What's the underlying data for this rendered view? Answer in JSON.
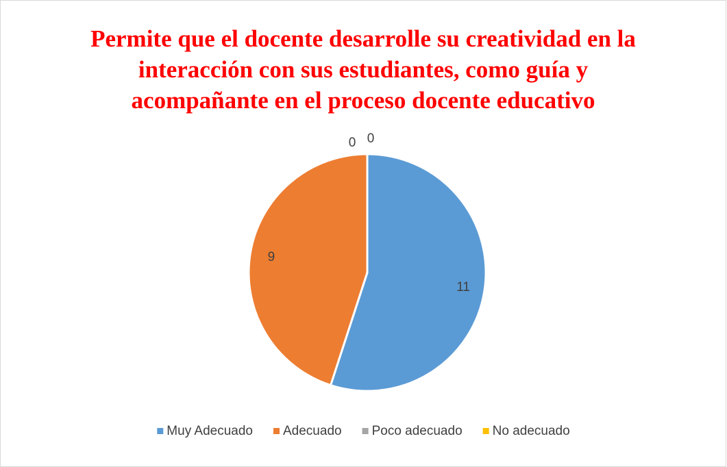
{
  "chart_data": {
    "type": "pie",
    "title": "Permite que el docente desarrolle su creatividad en la interacción con sus estudiantes, como guía y acompañante en el proceso docente educativo",
    "categories": [
      "Muy Adecuado",
      "Adecuado",
      "Poco adecuado",
      "No adecuado"
    ],
    "values": [
      11,
      9,
      0,
      0
    ],
    "colors": [
      "#5b9bd5",
      "#ed7d31",
      "#a5a5a5",
      "#ffc000"
    ],
    "legend": "bottom"
  }
}
